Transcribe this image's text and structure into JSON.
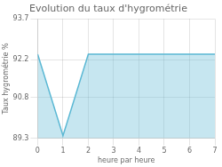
{
  "chart_data": {
    "type": "area",
    "title": "Evolution du taux d'hygrométrie",
    "xlabel": "heure par heure",
    "ylabel": "Taux hygrométrie %",
    "x": [
      0,
      1,
      2,
      3,
      4,
      5,
      6,
      7
    ],
    "values": [
      92.4,
      89.4,
      92.4,
      92.4,
      92.4,
      92.4,
      92.4,
      92.4
    ],
    "color": "#5bb8d4",
    "xlim": [
      0,
      7
    ],
    "ylim": [
      89.3,
      93.7
    ],
    "xticks": [
      0,
      1,
      2,
      3,
      4,
      5,
      6,
      7
    ],
    "yticks": [
      89.3,
      90.8,
      92.2,
      93.7
    ],
    "grid": true
  }
}
